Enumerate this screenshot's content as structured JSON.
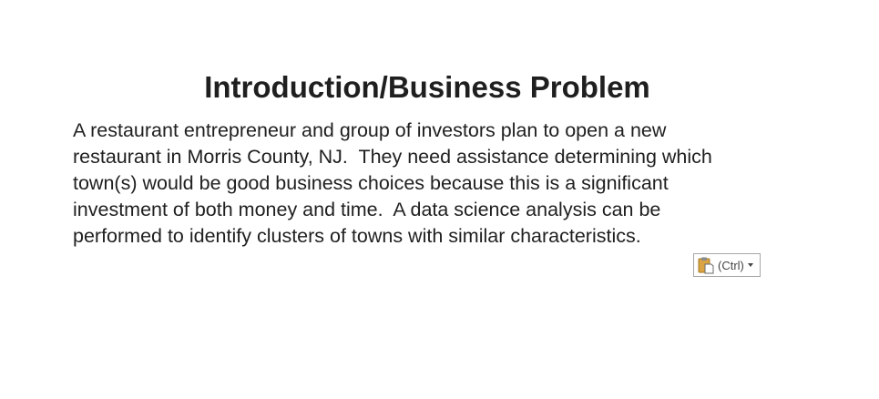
{
  "slide": {
    "title": "Introduction/Business Problem",
    "body_lines": [
      "A restaurant entrepreneur and group of investors plan to open a new",
      "restaurant in Morris County, NJ.  They need assistance determining which",
      "town(s) would be good business choices because this is a significant",
      "investment of both money and time.  A data science analysis can be",
      "performed to identify clusters of towns with similar characteristics."
    ]
  },
  "paste_options": {
    "label": "(Ctrl)",
    "icon": "clipboard-icon",
    "menu_icon": "chevron-down-icon"
  },
  "colors": {
    "text": "#1f1f1f",
    "clipboard": "#d9a441",
    "border": "#a7a7a7"
  }
}
